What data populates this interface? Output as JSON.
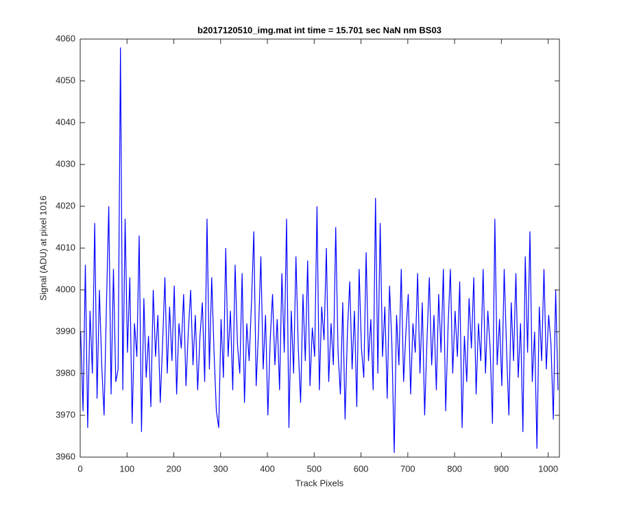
{
  "chart_data": {
    "type": "line",
    "title": "b2017120510_img.mat int time = 15.701 sec  NaN nm BS03",
    "x_label": "Track Pixels",
    "y_label": "Signal (ADU) at pixel 1016",
    "color": "#0000ff",
    "xlim": [
      0,
      1024
    ],
    "ylim": [
      3960,
      4060
    ],
    "xticks": [
      0,
      100,
      200,
      300,
      400,
      500,
      600,
      700,
      800,
      900,
      1000
    ],
    "yticks": [
      3960,
      3970,
      3980,
      3990,
      4000,
      4010,
      4020,
      4030,
      4040,
      4050,
      4060
    ],
    "x": [
      1,
      6,
      11,
      16,
      21,
      26,
      31,
      36,
      41,
      46,
      51,
      56,
      61,
      66,
      71,
      76,
      81,
      86,
      91,
      96,
      101,
      106,
      111,
      116,
      121,
      126,
      131,
      136,
      141,
      146,
      151,
      156,
      161,
      166,
      171,
      176,
      181,
      186,
      191,
      196,
      201,
      206,
      211,
      216,
      221,
      226,
      231,
      236,
      241,
      246,
      251,
      256,
      261,
      266,
      271,
      276,
      281,
      286,
      291,
      296,
      301,
      306,
      311,
      316,
      321,
      326,
      331,
      336,
      341,
      346,
      351,
      356,
      361,
      366,
      371,
      376,
      381,
      386,
      391,
      396,
      401,
      406,
      411,
      416,
      421,
      426,
      431,
      436,
      441,
      446,
      451,
      456,
      461,
      466,
      471,
      476,
      481,
      486,
      491,
      496,
      501,
      506,
      511,
      516,
      521,
      526,
      531,
      536,
      541,
      546,
      551,
      556,
      561,
      566,
      571,
      576,
      581,
      586,
      591,
      596,
      601,
      606,
      611,
      616,
      621,
      626,
      631,
      636,
      641,
      646,
      651,
      656,
      661,
      666,
      671,
      676,
      681,
      686,
      691,
      696,
      701,
      706,
      711,
      716,
      721,
      726,
      731,
      736,
      741,
      746,
      751,
      756,
      761,
      766,
      771,
      776,
      781,
      786,
      791,
      796,
      801,
      806,
      811,
      816,
      821,
      826,
      831,
      836,
      841,
      846,
      851,
      856,
      861,
      866,
      871,
      876,
      881,
      886,
      891,
      896,
      901,
      906,
      911,
      916,
      921,
      926,
      931,
      936,
      941,
      946,
      951,
      956,
      961,
      966,
      971,
      976,
      981,
      986,
      991,
      996,
      1001,
      1006,
      1011,
      1016,
      1021
    ],
    "values": [
      3990,
      3971,
      4006,
      3967,
      3995,
      3980,
      4016,
      3974,
      4000,
      3982,
      3970,
      3996,
      4020,
      3975,
      4005,
      3978,
      3981,
      4058,
      3976,
      4017,
      3985,
      4003,
      3968,
      3992,
      3984,
      4013,
      3966,
      3998,
      3979,
      3989,
      3972,
      4000,
      3984,
      3994,
      3973,
      3987,
      4003,
      3980,
      3996,
      3983,
      4001,
      3975,
      3992,
      3986,
      3999,
      3977,
      3990,
      4000,
      3982,
      3994,
      3976,
      3989,
      3997,
      3978,
      4017,
      3981,
      4003,
      3985,
      3971,
      3967,
      3993,
      3979,
      4010,
      3984,
      3995,
      3976,
      4006,
      3987,
      3980,
      4004,
      3973,
      3992,
      3983,
      3997,
      4014,
      3977,
      3990,
      4008,
      3981,
      3994,
      3970,
      3988,
      3999,
      3982,
      3993,
      3976,
      4004,
      3985,
      4017,
      3967,
      3995,
      3980,
      4008,
      3986,
      3973,
      3999,
      3983,
      4007,
      3977,
      3991,
      3984,
      4020,
      3976,
      3996,
      3988,
      4010,
      3978,
      3992,
      3982,
      4015,
      3985,
      3975,
      3997,
      3969,
      3990,
      4002,
      3981,
      3995,
      3972,
      4005,
      3986,
      3979,
      4009,
      3983,
      3993,
      3976,
      4022,
      3980,
      4016,
      3984,
      3996,
      3974,
      4001,
      3987,
      3961,
      3994,
      3982,
      4005,
      3978,
      3990,
      3999,
      3975,
      3992,
      3985,
      4004,
      3980,
      3997,
      3970,
      3988,
      4003,
      3982,
      3994,
      3976,
      3999,
      3985,
      4005,
      3971,
      3991,
      4005,
      3980,
      3995,
      3984,
      4002,
      3967,
      3989,
      3978,
      3998,
      3986,
      4003,
      3975,
      3992,
      3983,
      4005,
      3980,
      3995,
      3986,
      3968,
      4017,
      3982,
      3993,
      3977,
      4005,
      3986,
      3970,
      3997,
      3983,
      4004,
      3979,
      3992,
      3966,
      4008,
      3985,
      4014,
      3978,
      3990,
      3962,
      3996,
      3983,
      4005,
      3981,
      3994,
      3987,
      3969,
      4000,
      3976
    ]
  }
}
